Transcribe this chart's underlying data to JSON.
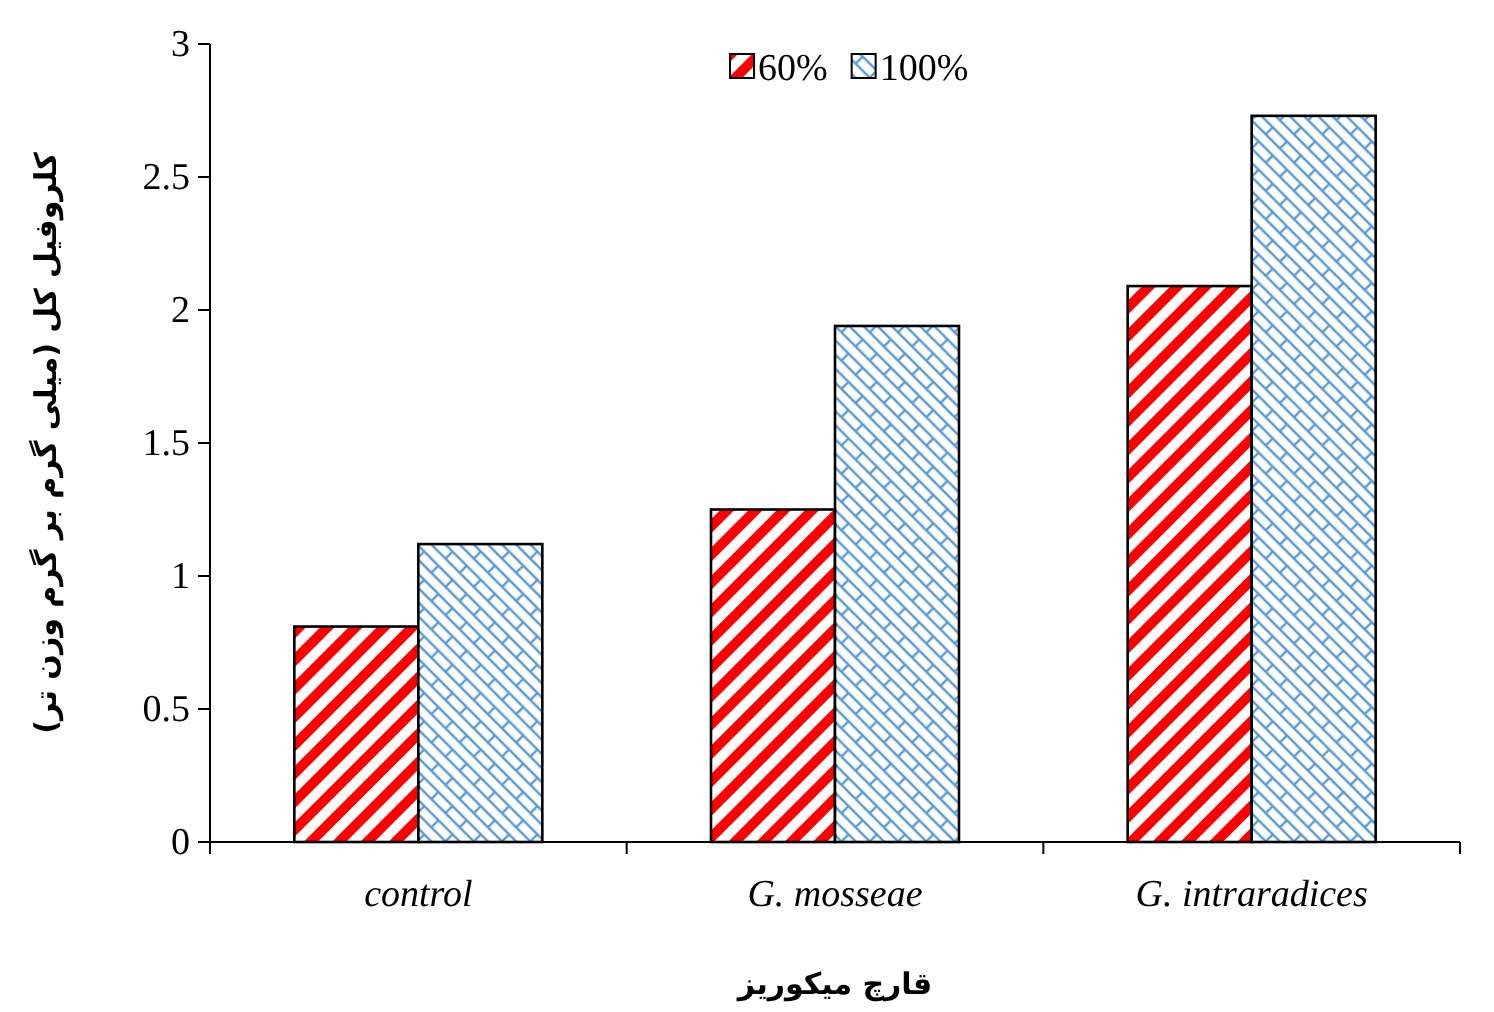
{
  "chart_data": {
    "type": "bar",
    "xlabel": "قارچ میکوریز",
    "ylabel": "کلروفیل کل (میلی گرم بر گرم وزن تر)",
    "categories": [
      "control",
      "G. mosseae",
      "G. intraradices"
    ],
    "series": [
      {
        "name": "60%",
        "color": "#ff0000",
        "values": [
          0.81,
          1.25,
          2.09
        ]
      },
      {
        "name": "100%",
        "color": "#5b9bd5",
        "values": [
          1.12,
          1.94,
          2.73
        ]
      }
    ],
    "ylim": [
      0,
      3
    ],
    "yticks": [
      0,
      0.5,
      1,
      1.5,
      2,
      2.5,
      3
    ],
    "grid": false,
    "legend": "top"
  }
}
